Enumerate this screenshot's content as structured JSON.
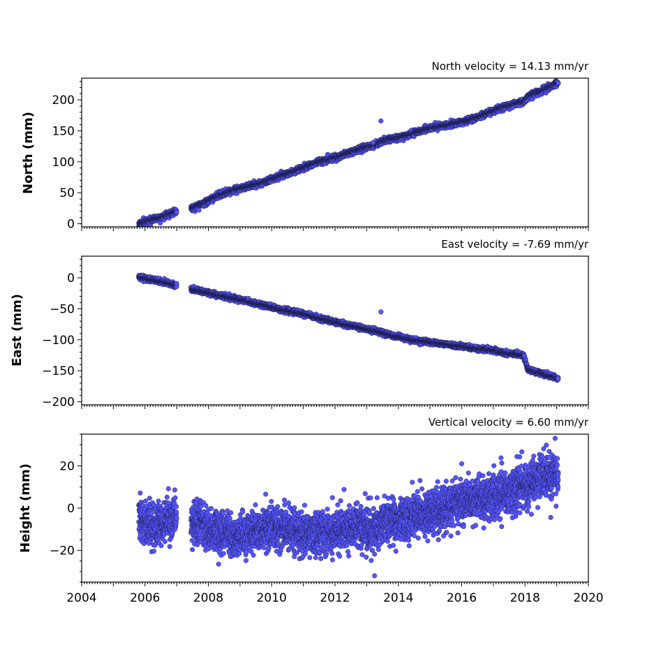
{
  "chart_data": [
    {
      "type": "scatter",
      "title": "North velocity = 14.13 mm/yr",
      "ylabel": "North (mm)",
      "xlim": [
        2004,
        2020
      ],
      "ylim": [
        -5,
        235
      ],
      "yticks": [
        0,
        50,
        100,
        150,
        200
      ],
      "yminor": 10,
      "velocity_mm_per_yr": 14.13,
      "marker_color": "#5555ff",
      "series": [
        {
          "points": [
            [
              2005.8,
              -1
            ],
            [
              2005.95,
              3
            ],
            [
              2006.15,
              6
            ],
            [
              2006.35,
              9
            ],
            [
              2006.55,
              11
            ],
            [
              2006.75,
              15
            ],
            [
              2006.95,
              19
            ],
            [
              2007.55,
              26
            ],
            [
              2007.75,
              31
            ],
            [
              2007.95,
              35
            ],
            [
              2008.2,
              43
            ],
            [
              2008.5,
              49
            ],
            [
              2008.8,
              54
            ],
            [
              2009.1,
              58
            ],
            [
              2009.4,
              62
            ],
            [
              2009.7,
              66
            ],
            [
              2010.0,
              72
            ],
            [
              2010.3,
              78
            ],
            [
              2010.6,
              83
            ],
            [
              2010.9,
              88
            ],
            [
              2011.2,
              94
            ],
            [
              2011.5,
              100
            ],
            [
              2011.8,
              104
            ],
            [
              2012.1,
              108
            ],
            [
              2012.4,
              114
            ],
            [
              2012.7,
              119
            ],
            [
              2013.0,
              124
            ],
            [
              2013.3,
              128
            ],
            [
              2013.5,
              134
            ],
            [
              2013.8,
              137
            ],
            [
              2014.1,
              140
            ],
            [
              2014.4,
              145
            ],
            [
              2014.7,
              150
            ],
            [
              2015.0,
              154
            ],
            [
              2015.3,
              157
            ],
            [
              2015.6,
              160
            ],
            [
              2015.9,
              163
            ],
            [
              2016.2,
              167
            ],
            [
              2016.5,
              172
            ],
            [
              2016.8,
              178
            ],
            [
              2017.1,
              184
            ],
            [
              2017.35,
              189
            ],
            [
              2017.65,
              193
            ],
            [
              2017.95,
              197
            ],
            [
              2018.15,
              207
            ],
            [
              2018.45,
              213
            ],
            [
              2018.75,
              220
            ],
            [
              2019.05,
              228
            ]
          ],
          "scatter_sd": 2.2
        }
      ],
      "outliers": [
        [
          2013.45,
          166
        ],
        [
          2013.2,
          131
        ]
      ]
    },
    {
      "type": "scatter",
      "title": "East velocity = -7.69 mm/yr",
      "ylabel": "East (mm)",
      "xlim": [
        2004,
        2020
      ],
      "ylim": [
        -205,
        35
      ],
      "yticks": [
        0,
        -50,
        -100,
        -150,
        -200
      ],
      "yminor": 10,
      "velocity_mm_per_yr": -7.69,
      "marker_color": "#5555ff",
      "series": [
        {
          "points": [
            [
              2005.8,
              1
            ],
            [
              2006.0,
              -1
            ],
            [
              2006.25,
              -3
            ],
            [
              2006.5,
              -6
            ],
            [
              2006.75,
              -9
            ],
            [
              2006.95,
              -12
            ],
            [
              2007.55,
              -19
            ],
            [
              2007.9,
              -23
            ],
            [
              2008.3,
              -28
            ],
            [
              2008.7,
              -32
            ],
            [
              2009.1,
              -36
            ],
            [
              2009.5,
              -41
            ],
            [
              2009.9,
              -46
            ],
            [
              2010.3,
              -51
            ],
            [
              2010.7,
              -55
            ],
            [
              2011.1,
              -59
            ],
            [
              2011.5,
              -65
            ],
            [
              2011.9,
              -70
            ],
            [
              2012.3,
              -75
            ],
            [
              2012.7,
              -79
            ],
            [
              2013.0,
              -83
            ],
            [
              2013.3,
              -86
            ],
            [
              2013.6,
              -90
            ],
            [
              2013.9,
              -94
            ],
            [
              2014.2,
              -97
            ],
            [
              2014.5,
              -101
            ],
            [
              2014.9,
              -103
            ],
            [
              2015.3,
              -106
            ],
            [
              2015.7,
              -109
            ],
            [
              2016.1,
              -111
            ],
            [
              2016.5,
              -114
            ],
            [
              2016.9,
              -116
            ],
            [
              2017.1,
              -118
            ],
            [
              2017.35,
              -121
            ],
            [
              2017.7,
              -123
            ],
            [
              2017.95,
              -125
            ],
            [
              2018.1,
              -148
            ],
            [
              2018.4,
              -152
            ],
            [
              2018.7,
              -157
            ],
            [
              2019.05,
              -163
            ]
          ],
          "scatter_sd": 1.8
        }
      ],
      "outliers": [
        [
          2013.45,
          -55
        ]
      ]
    },
    {
      "type": "scatter",
      "title": "Vertical velocity = 6.60 mm/yr",
      "ylabel": "Height (mm)",
      "xlim": [
        2004,
        2020
      ],
      "ylim": [
        -35,
        35
      ],
      "yticks": [
        20,
        0,
        -20
      ],
      "yminor": 5,
      "velocity_mm_per_yr": 6.6,
      "marker_color": "#5555ff",
      "series": [
        {
          "points": [
            [
              2005.8,
              -5
            ],
            [
              2006.3,
              -9
            ],
            [
              2006.8,
              -6
            ],
            [
              2007.0,
              -3
            ],
            [
              2007.5,
              -6
            ],
            [
              2008.0,
              -9
            ],
            [
              2008.5,
              -12
            ],
            [
              2009.0,
              -13
            ],
            [
              2009.5,
              -11
            ],
            [
              2010.0,
              -9
            ],
            [
              2010.5,
              -10
            ],
            [
              2011.0,
              -12
            ],
            [
              2011.5,
              -12
            ],
            [
              2012.0,
              -11
            ],
            [
              2012.5,
              -10
            ],
            [
              2013.0,
              -9
            ],
            [
              2013.3,
              -11
            ],
            [
              2013.6,
              -6
            ],
            [
              2014.0,
              -5
            ],
            [
              2014.5,
              -4
            ],
            [
              2015.0,
              -2
            ],
            [
              2015.5,
              0
            ],
            [
              2016.0,
              3
            ],
            [
              2016.5,
              4
            ],
            [
              2017.0,
              6
            ],
            [
              2017.4,
              7
            ],
            [
              2017.8,
              9
            ],
            [
              2018.2,
              12
            ],
            [
              2018.6,
              15
            ],
            [
              2019.05,
              16
            ]
          ],
          "scatter_sd": 5.0
        }
      ],
      "outliers": [
        [
          2013.25,
          -32
        ],
        [
          2018.95,
          33
        ],
        [
          2016.0,
          21
        ]
      ]
    }
  ],
  "x_axis": {
    "ticks": [
      "2004",
      "2006",
      "2008",
      "2010",
      "2012",
      "2014",
      "2016",
      "2018",
      "2020"
    ],
    "minor_per_year": 12,
    "data_gap": [
      2007.0,
      2007.45
    ]
  }
}
